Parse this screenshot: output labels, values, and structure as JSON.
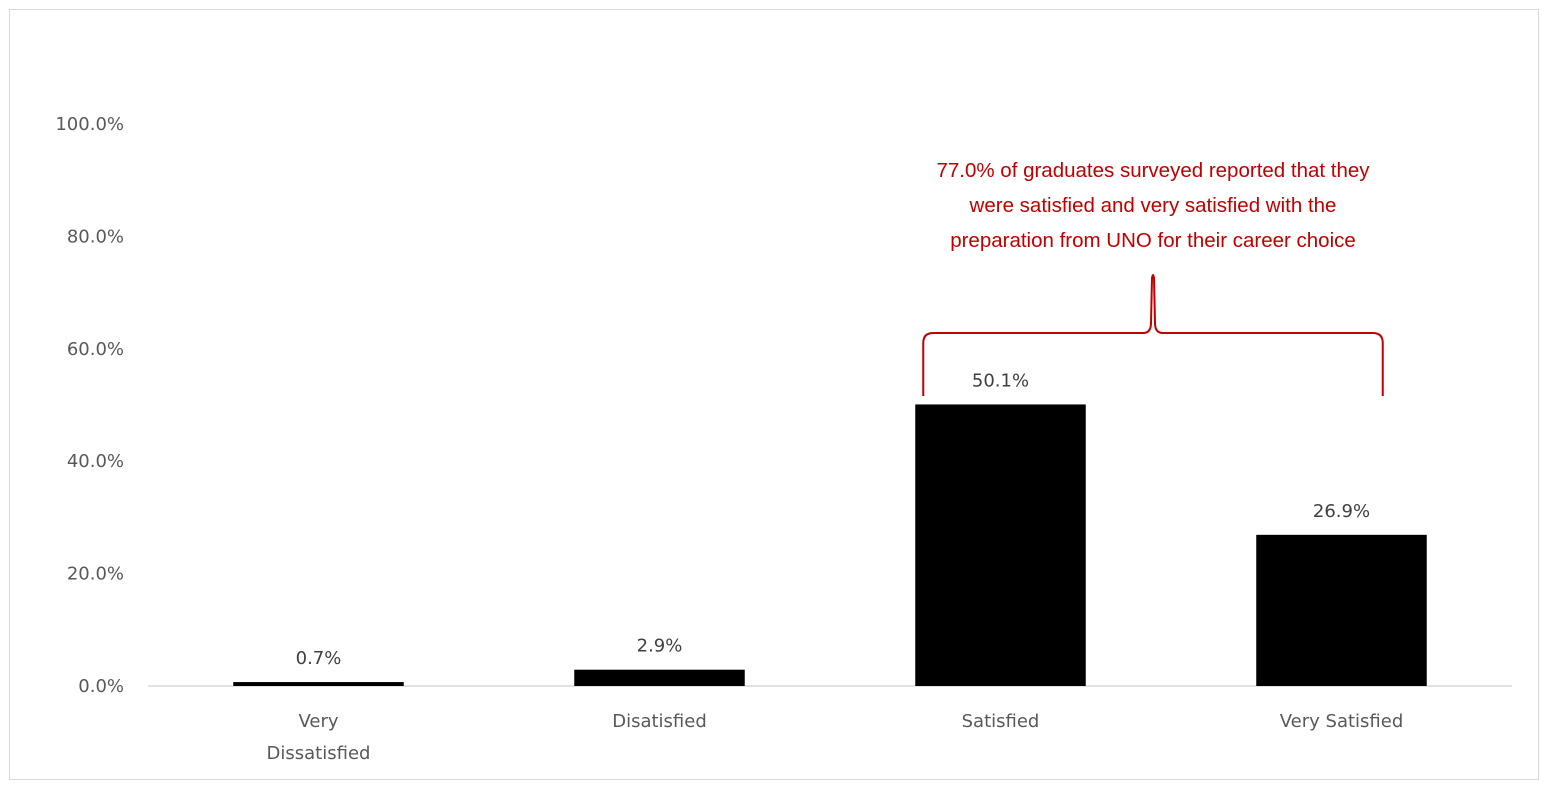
{
  "chart_data": {
    "type": "bar",
    "categories": [
      [
        "Very",
        "Dissatisfied"
      ],
      [
        "Disatisfied"
      ],
      [
        "Satisfied"
      ],
      [
        "Very Satisfied"
      ]
    ],
    "values": [
      0.7,
      2.9,
      50.1,
      26.9
    ],
    "value_labels": [
      "0.7%",
      "2.9%",
      "50.1%",
      "26.9%"
    ],
    "ylim": [
      0,
      100
    ],
    "yticks": [
      0,
      20,
      40,
      60,
      80,
      100
    ],
    "ytick_labels": [
      "0.0%",
      "20.0%",
      "40.0%",
      "60.0%",
      "80.0%",
      "100.0%"
    ],
    "title": "",
    "xlabel": "",
    "ylabel": "",
    "grid": false,
    "bar_color": "#000000",
    "annotation": {
      "lines": [
        "77.0% of graduates surveyed reported that they",
        "were satisfied and very satisfied with the",
        "preparation from UNO for their career choice"
      ],
      "spans_categories": [
        2,
        3
      ],
      "color": "#c00000"
    }
  }
}
